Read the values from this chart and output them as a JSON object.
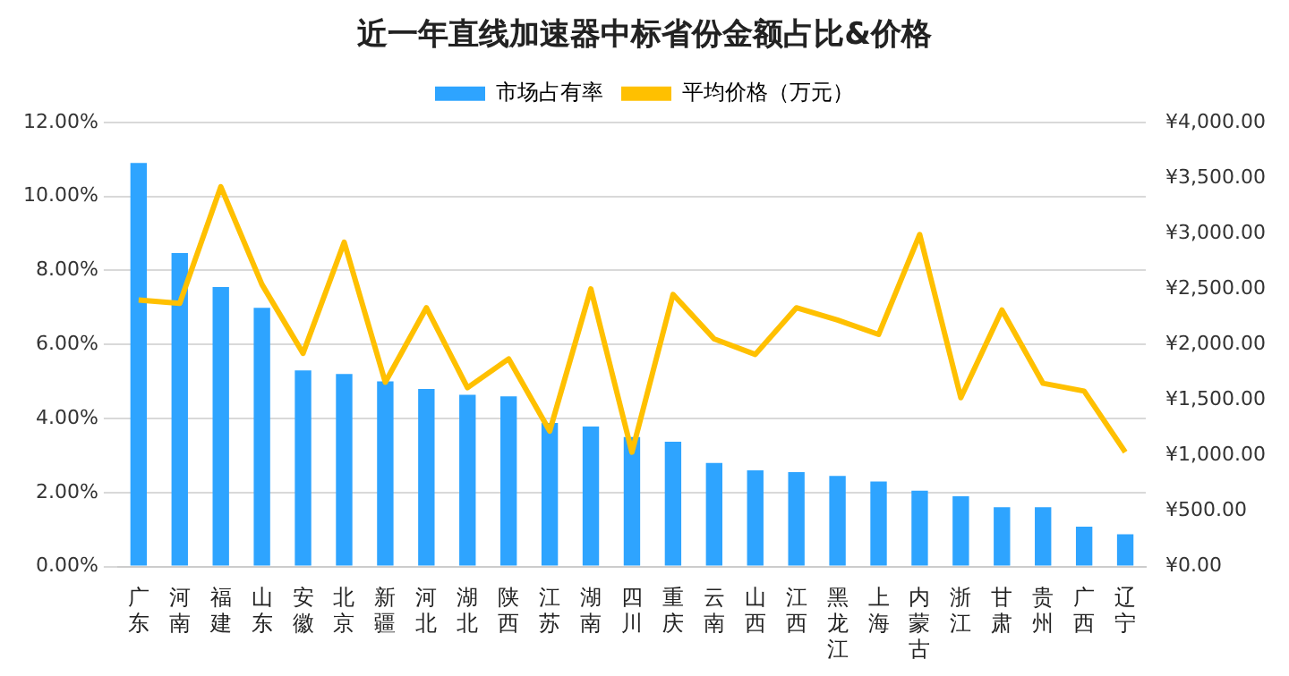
{
  "chart_data": {
    "type": "bar",
    "title": "近一年直线加速器中标省份金额占比&价格",
    "categories": [
      "广东",
      "河南",
      "福建",
      "山东",
      "安徽",
      "北京",
      "新疆",
      "河北",
      "湖北",
      "陕西",
      "江苏",
      "湖南",
      "四川",
      "重庆",
      "云南",
      "山西",
      "江西",
      "黑龙江",
      "上海",
      "内蒙古",
      "浙江",
      "甘肃",
      "贵州",
      "广西",
      "辽宁"
    ],
    "series": [
      {
        "name": "市场占有率",
        "color": "#2ea4ff",
        "values": [
          10.9,
          8.47,
          7.55,
          6.99,
          5.3,
          5.2,
          5.0,
          4.8,
          4.64,
          4.6,
          3.88,
          3.78,
          3.5,
          3.37,
          2.8,
          2.6,
          2.55,
          2.45,
          2.3,
          2.05,
          1.9,
          1.6,
          1.6,
          1.08,
          0.87
        ]
      },
      {
        "name": "平均价格（万元）",
        "color": "#ffc000",
        "type": "line",
        "axis": "y2",
        "values": [
          2400,
          2370,
          3420,
          2540,
          1920,
          2920,
          1660,
          2330,
          1610,
          1870,
          1220,
          2500,
          1030,
          2450,
          2050,
          1910,
          2330,
          2220,
          2090,
          2990,
          1520,
          2310,
          1650,
          1580,
          1030
        ]
      }
    ],
    "ylim": [
      0,
      12
    ],
    "yticks": [
      {
        "value": 0,
        "label": "0.00%"
      },
      {
        "value": 2,
        "label": "2.00%"
      },
      {
        "value": 4,
        "label": "4.00%"
      },
      {
        "value": 6,
        "label": "6.00%"
      },
      {
        "value": 8,
        "label": "8.00%"
      },
      {
        "value": 10,
        "label": "10.00%"
      },
      {
        "value": 12,
        "label": "12.00%"
      }
    ],
    "y2lim": [
      0,
      4000
    ],
    "y2ticks": [
      {
        "value": 0,
        "label": "¥0.00"
      },
      {
        "value": 500,
        "label": "¥500.00"
      },
      {
        "value": 1000,
        "label": "¥1,000.00"
      },
      {
        "value": 1500,
        "label": "¥1,500.00"
      },
      {
        "value": 2000,
        "label": "¥2,000.00"
      },
      {
        "value": 2500,
        "label": "¥2,500.00"
      },
      {
        "value": 3000,
        "label": "¥3,000.00"
      },
      {
        "value": 3500,
        "label": "¥3,500.00"
      },
      {
        "value": 4000,
        "label": "¥4,000.00"
      }
    ],
    "grid": "y",
    "legend": "top",
    "marker": "none"
  }
}
